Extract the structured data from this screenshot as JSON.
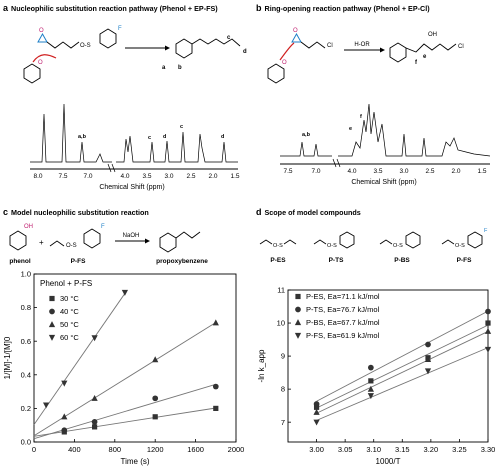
{
  "panels": {
    "a": {
      "letter": "a",
      "title": "Nucleophilic substitution reaction pathway (Phenol + EP-FS)",
      "atom_labels": [
        "a",
        "b",
        "c",
        "d"
      ],
      "xlabel": "Chemical Shift (ppm)",
      "ticks": [
        "8.0",
        "7.5",
        "7.0",
        "4.0",
        "3.5",
        "3.0",
        "2.5",
        "2.0",
        "1.5"
      ],
      "peak_labels": [
        "a,b",
        "c",
        "d",
        "c",
        "d"
      ]
    },
    "b": {
      "letter": "b",
      "title": "Ring-opening reaction pathway (Phenol + EP-Cl)",
      "reagent": "H-OR",
      "atom_labels": [
        "OH",
        "e",
        "f",
        "Cl"
      ],
      "xlabel": "Chemical Shift (ppm)",
      "ticks": [
        "7.5",
        "7.0",
        "4.0",
        "3.5",
        "3.0",
        "2.5",
        "2.0",
        "1.5"
      ],
      "peak_labels": [
        "a,b",
        "e",
        "f"
      ]
    },
    "c": {
      "letter": "c",
      "title": "Model nucleophilic substitution reaction",
      "reagent": "NaOH",
      "plus": "+",
      "compounds": [
        "phenol",
        "P-FS",
        "propoxybenzene"
      ]
    },
    "d": {
      "letter": "d",
      "title": "Scope of model compounds",
      "compounds": [
        "P-ES",
        "P-TS",
        "P-BS",
        "P-FS"
      ]
    }
  },
  "chart_data": [
    {
      "type": "scatter",
      "title": "Phenol + P-FS",
      "xlabel": "Time (s)",
      "ylabel": "1/[M]-1/[M]0",
      "xlim": [
        0,
        2000
      ],
      "ylim": [
        0,
        1.0
      ],
      "xticks": [
        "0",
        "400",
        "800",
        "1200",
        "1600",
        "2000"
      ],
      "yticks": [
        "0.0",
        "0.2",
        "0.4",
        "0.6",
        "0.8",
        "1.0"
      ],
      "legend_placement": "top-left",
      "series": [
        {
          "name": "30 °C",
          "marker": "square",
          "x": [
            300,
            600,
            1200,
            1800
          ],
          "y": [
            0.06,
            0.09,
            0.15,
            0.2
          ]
        },
        {
          "name": "40 °C",
          "marker": "circle",
          "x": [
            300,
            600,
            1200,
            1800
          ],
          "y": [
            0.07,
            0.12,
            0.26,
            0.33
          ]
        },
        {
          "name": "50 °C",
          "marker": "triangle-up",
          "x": [
            300,
            600,
            1200,
            1800
          ],
          "y": [
            0.15,
            0.26,
            0.49,
            0.71
          ]
        },
        {
          "name": "60 °C",
          "marker": "triangle-down",
          "x": [
            120,
            300,
            600,
            900
          ],
          "y": [
            0.22,
            0.35,
            0.62,
            0.89
          ]
        }
      ]
    },
    {
      "type": "scatter",
      "xlabel": "1000/T",
      "ylabel": "-ln k_app",
      "xlim": [
        2.95,
        3.3
      ],
      "ylim": [
        6.4,
        11.0
      ],
      "xticks": [
        "3.00",
        "3.05",
        "3.10",
        "3.15",
        "3.20",
        "3.25",
        "3.30"
      ],
      "yticks": [
        "7",
        "8",
        "9",
        "10",
        "11"
      ],
      "legend_placement": "top-left",
      "series": [
        {
          "name": "P-ES, Ea=71.1 kJ/mol",
          "marker": "square",
          "x": [
            3.0,
            3.095,
            3.195,
            3.3
          ],
          "y": [
            7.45,
            8.25,
            8.95,
            10.0
          ]
        },
        {
          "name": "P-TS, Ea=76.7 kJ/mol",
          "marker": "circle",
          "x": [
            3.0,
            3.095,
            3.195,
            3.3
          ],
          "y": [
            7.55,
            8.65,
            9.35,
            10.35
          ]
        },
        {
          "name": "P-BS, Ea=67.7 kJ/mol",
          "marker": "triangle-up",
          "x": [
            3.0,
            3.095,
            3.195,
            3.3
          ],
          "y": [
            7.3,
            8.0,
            8.9,
            9.75
          ]
        },
        {
          "name": "P-FS, Ea=61.9 kJ/mol",
          "marker": "triangle-down",
          "x": [
            3.0,
            3.095,
            3.195,
            3.3
          ],
          "y": [
            7.0,
            7.8,
            8.55,
            9.2
          ]
        }
      ]
    }
  ]
}
